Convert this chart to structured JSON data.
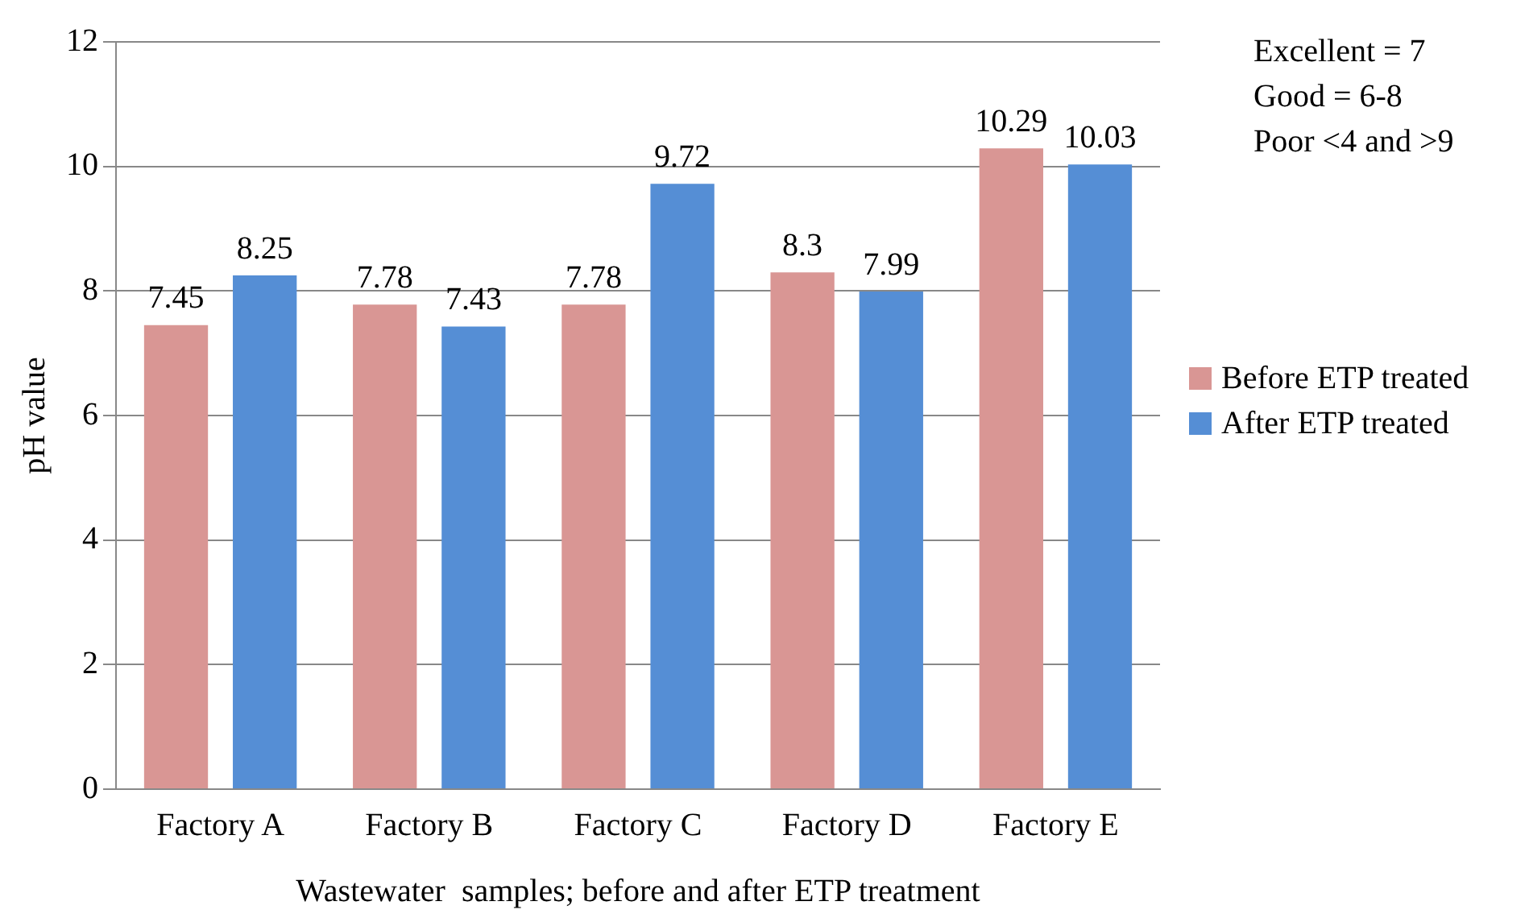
{
  "chart_data": {
    "type": "bar",
    "xlabel": "Wastewater  samples; before and after ETP treatment",
    "ylabel": "pH value",
    "categories": [
      "Factory A",
      "Factory B",
      "Factory C",
      "Factory D",
      "Factory E"
    ],
    "series": [
      {
        "name": "Before ETP treated",
        "color": "#d99694",
        "values": [
          7.45,
          7.78,
          7.78,
          8.3,
          10.29
        ]
      },
      {
        "name": "After ETP treated",
        "color": "#558ed5",
        "values": [
          8.25,
          7.43,
          9.72,
          7.99,
          10.03
        ]
      }
    ],
    "ylim": [
      0,
      12
    ],
    "yticks": [
      0,
      2,
      4,
      6,
      8,
      10,
      12
    ],
    "grid": "y",
    "legend": "right",
    "data_labels": true,
    "annotations": [
      "Excellent = 7",
      "Good = 6-8",
      "Poor <4 and >9"
    ]
  }
}
